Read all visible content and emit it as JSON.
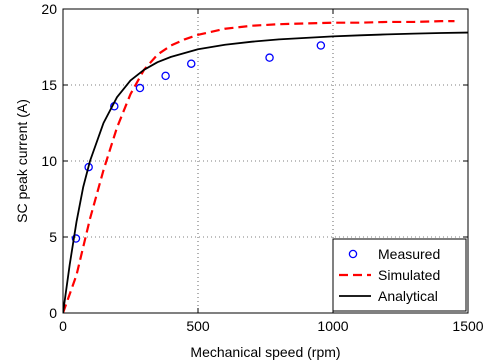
{
  "chart_data": {
    "type": "line",
    "title": "",
    "xlabel": "Mechanical speed (rpm)",
    "ylabel": "SC peak current (A)",
    "xlim": [
      0,
      1500
    ],
    "ylim": [
      0,
      20
    ],
    "xticks": [
      0,
      500,
      1000,
      1500
    ],
    "yticks": [
      0,
      5,
      10,
      15,
      20
    ],
    "xtick_labels": [
      "0",
      "500",
      "1000",
      "1500"
    ],
    "ytick_labels": [
      "0",
      "5",
      "10",
      "15",
      "20"
    ],
    "grid": true,
    "legend_position": "bottom-right",
    "series": [
      {
        "name": "Measured",
        "style": "markers",
        "marker": "circle",
        "color": "#0000ff",
        "x": [
          48,
          95,
          190,
          285,
          380,
          475,
          765,
          955
        ],
        "y": [
          4.9,
          9.6,
          13.6,
          14.8,
          15.6,
          16.4,
          16.8,
          17.6
        ]
      },
      {
        "name": "Simulated",
        "style": "dashed",
        "color": "#ff0000",
        "x": [
          0,
          50,
          100,
          150,
          200,
          250,
          300,
          350,
          400,
          450,
          500,
          600,
          700,
          800,
          900,
          1000,
          1100,
          1200,
          1300,
          1400,
          1450
        ],
        "y": [
          0,
          2.5,
          6.2,
          9.4,
          12.2,
          14.4,
          16.0,
          17.0,
          17.6,
          18.0,
          18.3,
          18.7,
          18.9,
          19.0,
          19.05,
          19.1,
          19.1,
          19.15,
          19.15,
          19.2,
          19.2
        ]
      },
      {
        "name": "Analytical",
        "style": "solid",
        "color": "#000000",
        "x": [
          0,
          25,
          50,
          75,
          100,
          150,
          200,
          250,
          300,
          350,
          400,
          500,
          600,
          700,
          800,
          900,
          1000,
          1100,
          1200,
          1300,
          1400,
          1500
        ],
        "y": [
          0,
          3.2,
          6.0,
          8.3,
          10.0,
          12.5,
          14.2,
          15.3,
          16.0,
          16.5,
          16.85,
          17.35,
          17.65,
          17.85,
          18.0,
          18.1,
          18.2,
          18.27,
          18.33,
          18.38,
          18.42,
          18.45
        ]
      }
    ]
  }
}
